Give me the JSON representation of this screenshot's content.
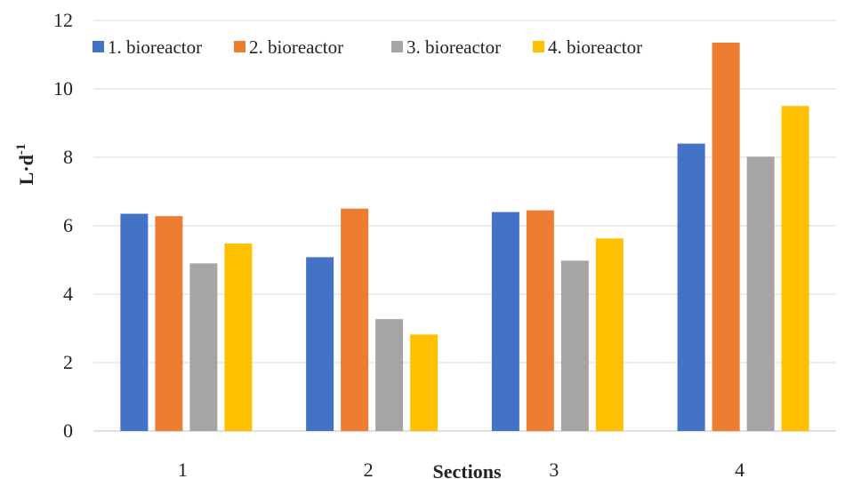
{
  "chart_data": {
    "type": "bar",
    "categories": [
      "1",
      "2",
      "3",
      "4"
    ],
    "series": [
      {
        "name": "1. bioreactor",
        "values": [
          6.35,
          5.08,
          6.4,
          8.4
        ],
        "color": "#4472C4"
      },
      {
        "name": "2. bioreactor",
        "values": [
          6.28,
          6.5,
          6.45,
          11.35
        ],
        "color": "#ED7D31"
      },
      {
        "name": "3. bioreactor",
        "values": [
          4.9,
          3.27,
          4.98,
          8.02
        ],
        "color": "#A5A5A5"
      },
      {
        "name": "4. bioreactor",
        "values": [
          5.48,
          2.82,
          5.63,
          9.5
        ],
        "color": "#FFC000"
      }
    ],
    "xlabel": "Sections",
    "ylabel_base": "L·d",
    "ylabel_sup": "-1",
    "ylim": [
      0,
      12
    ],
    "yticks": [
      0,
      2,
      4,
      6,
      8,
      10,
      12
    ],
    "grid": true,
    "legend_position": "top"
  }
}
